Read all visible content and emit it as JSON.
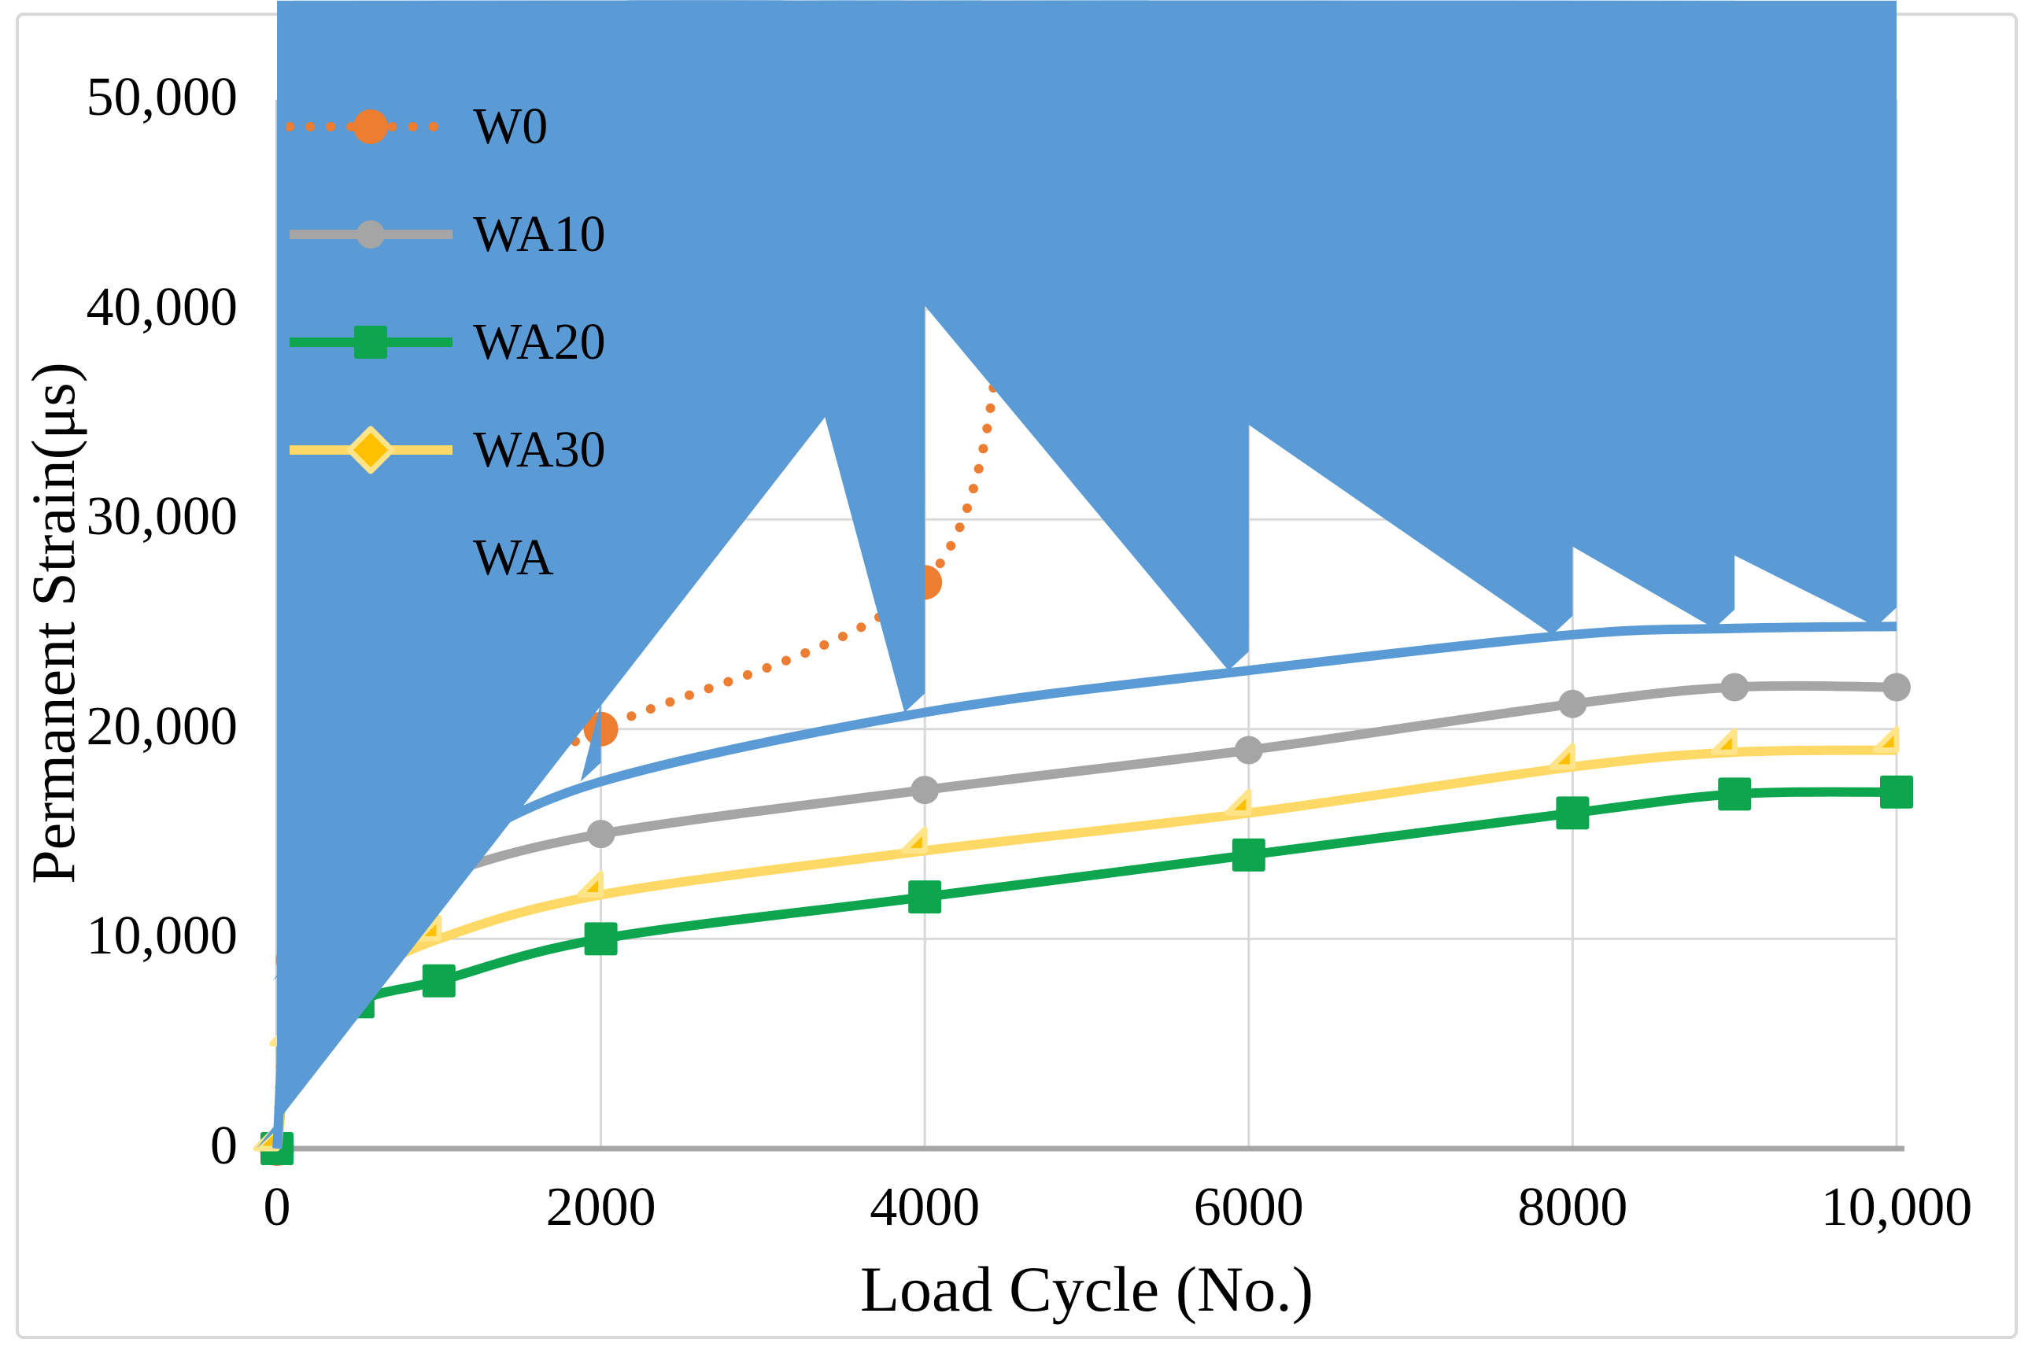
{
  "chart_data": {
    "type": "line",
    "title": "",
    "xlabel": "Load Cycle (No.)",
    "ylabel": "Permanent Strain(μs)",
    "xlim": [
      0,
      10000
    ],
    "ylim": [
      0,
      50000
    ],
    "grid": true,
    "legend_position": "inside-top-left",
    "x_tick_values": [
      0,
      2000,
      4000,
      6000,
      8000,
      10000
    ],
    "x_tick_labels": [
      "0",
      "2000",
      "4000",
      "6000",
      "8000",
      "10,000"
    ],
    "y_tick_values": [
      0,
      10000,
      20000,
      30000,
      40000,
      50000
    ],
    "y_tick_labels": [
      "0",
      "10,000",
      "20,000",
      "30,000",
      "40,000",
      "50,000"
    ],
    "series": [
      {
        "name": "W0",
        "color": "#ED7D31",
        "line_style": "dotted",
        "marker": "circle",
        "marker_color": "#ED7D31",
        "marker_size": 22,
        "x": [
          0,
          100,
          500,
          1000,
          2000,
          4000,
          4500
        ],
        "y": [
          0,
          9000,
          13000,
          16000,
          20000,
          27000,
          40000
        ]
      },
      {
        "name": "WA10",
        "color": "#A5A5A5",
        "line_style": "solid",
        "marker": "circle",
        "marker_color": "#A5A5A5",
        "marker_size": 18,
        "x": [
          0,
          100,
          500,
          1000,
          2000,
          4000,
          6000,
          8000,
          9000,
          10000
        ],
        "y": [
          0,
          7500,
          11000,
          13000,
          15000,
          17100,
          19000,
          21200,
          22000,
          22000
        ]
      },
      {
        "name": "WA20",
        "color": "#0DA64F",
        "line_style": "solid",
        "marker": "square",
        "marker_color": "#0DA64F",
        "marker_size": 21,
        "x": [
          0,
          100,
          500,
          1000,
          2000,
          4000,
          6000,
          8000,
          9000,
          10000
        ],
        "y": [
          0,
          4500,
          7000,
          8000,
          10000,
          12000,
          14000,
          16000,
          16900,
          17000
        ]
      },
      {
        "name": "WA30",
        "color": "#FFD965",
        "line_style": "solid",
        "marker": "diamond",
        "marker_color": "#FFC000",
        "marker_stroke": "#FFE48A",
        "marker_size": 27,
        "x": [
          0,
          100,
          500,
          1000,
          2000,
          4000,
          6000,
          8000,
          9000,
          10000
        ],
        "y": [
          0,
          5000,
          8000,
          10000,
          12100,
          14200,
          16000,
          18200,
          18900,
          19000
        ]
      },
      {
        "name": "WA",
        "color": "#5B9BD5",
        "line_style": "solid",
        "marker": "triangle",
        "marker_color": "#5B9BD5",
        "marker_size": 24,
        "x": [
          0,
          100,
          500,
          1000,
          2000,
          4000,
          6000,
          8000,
          9000,
          10000
        ],
        "y": [
          0,
          8000,
          11800,
          14000,
          17500,
          20800,
          22800,
          24500,
          24800,
          24900
        ]
      }
    ]
  },
  "colors": {
    "grid": "#D9D9D9",
    "x_axis_line": "#A6A6A6",
    "y_axis_line": "#C6C6C6",
    "frame": "#D9D9D9",
    "text": "#000000"
  }
}
